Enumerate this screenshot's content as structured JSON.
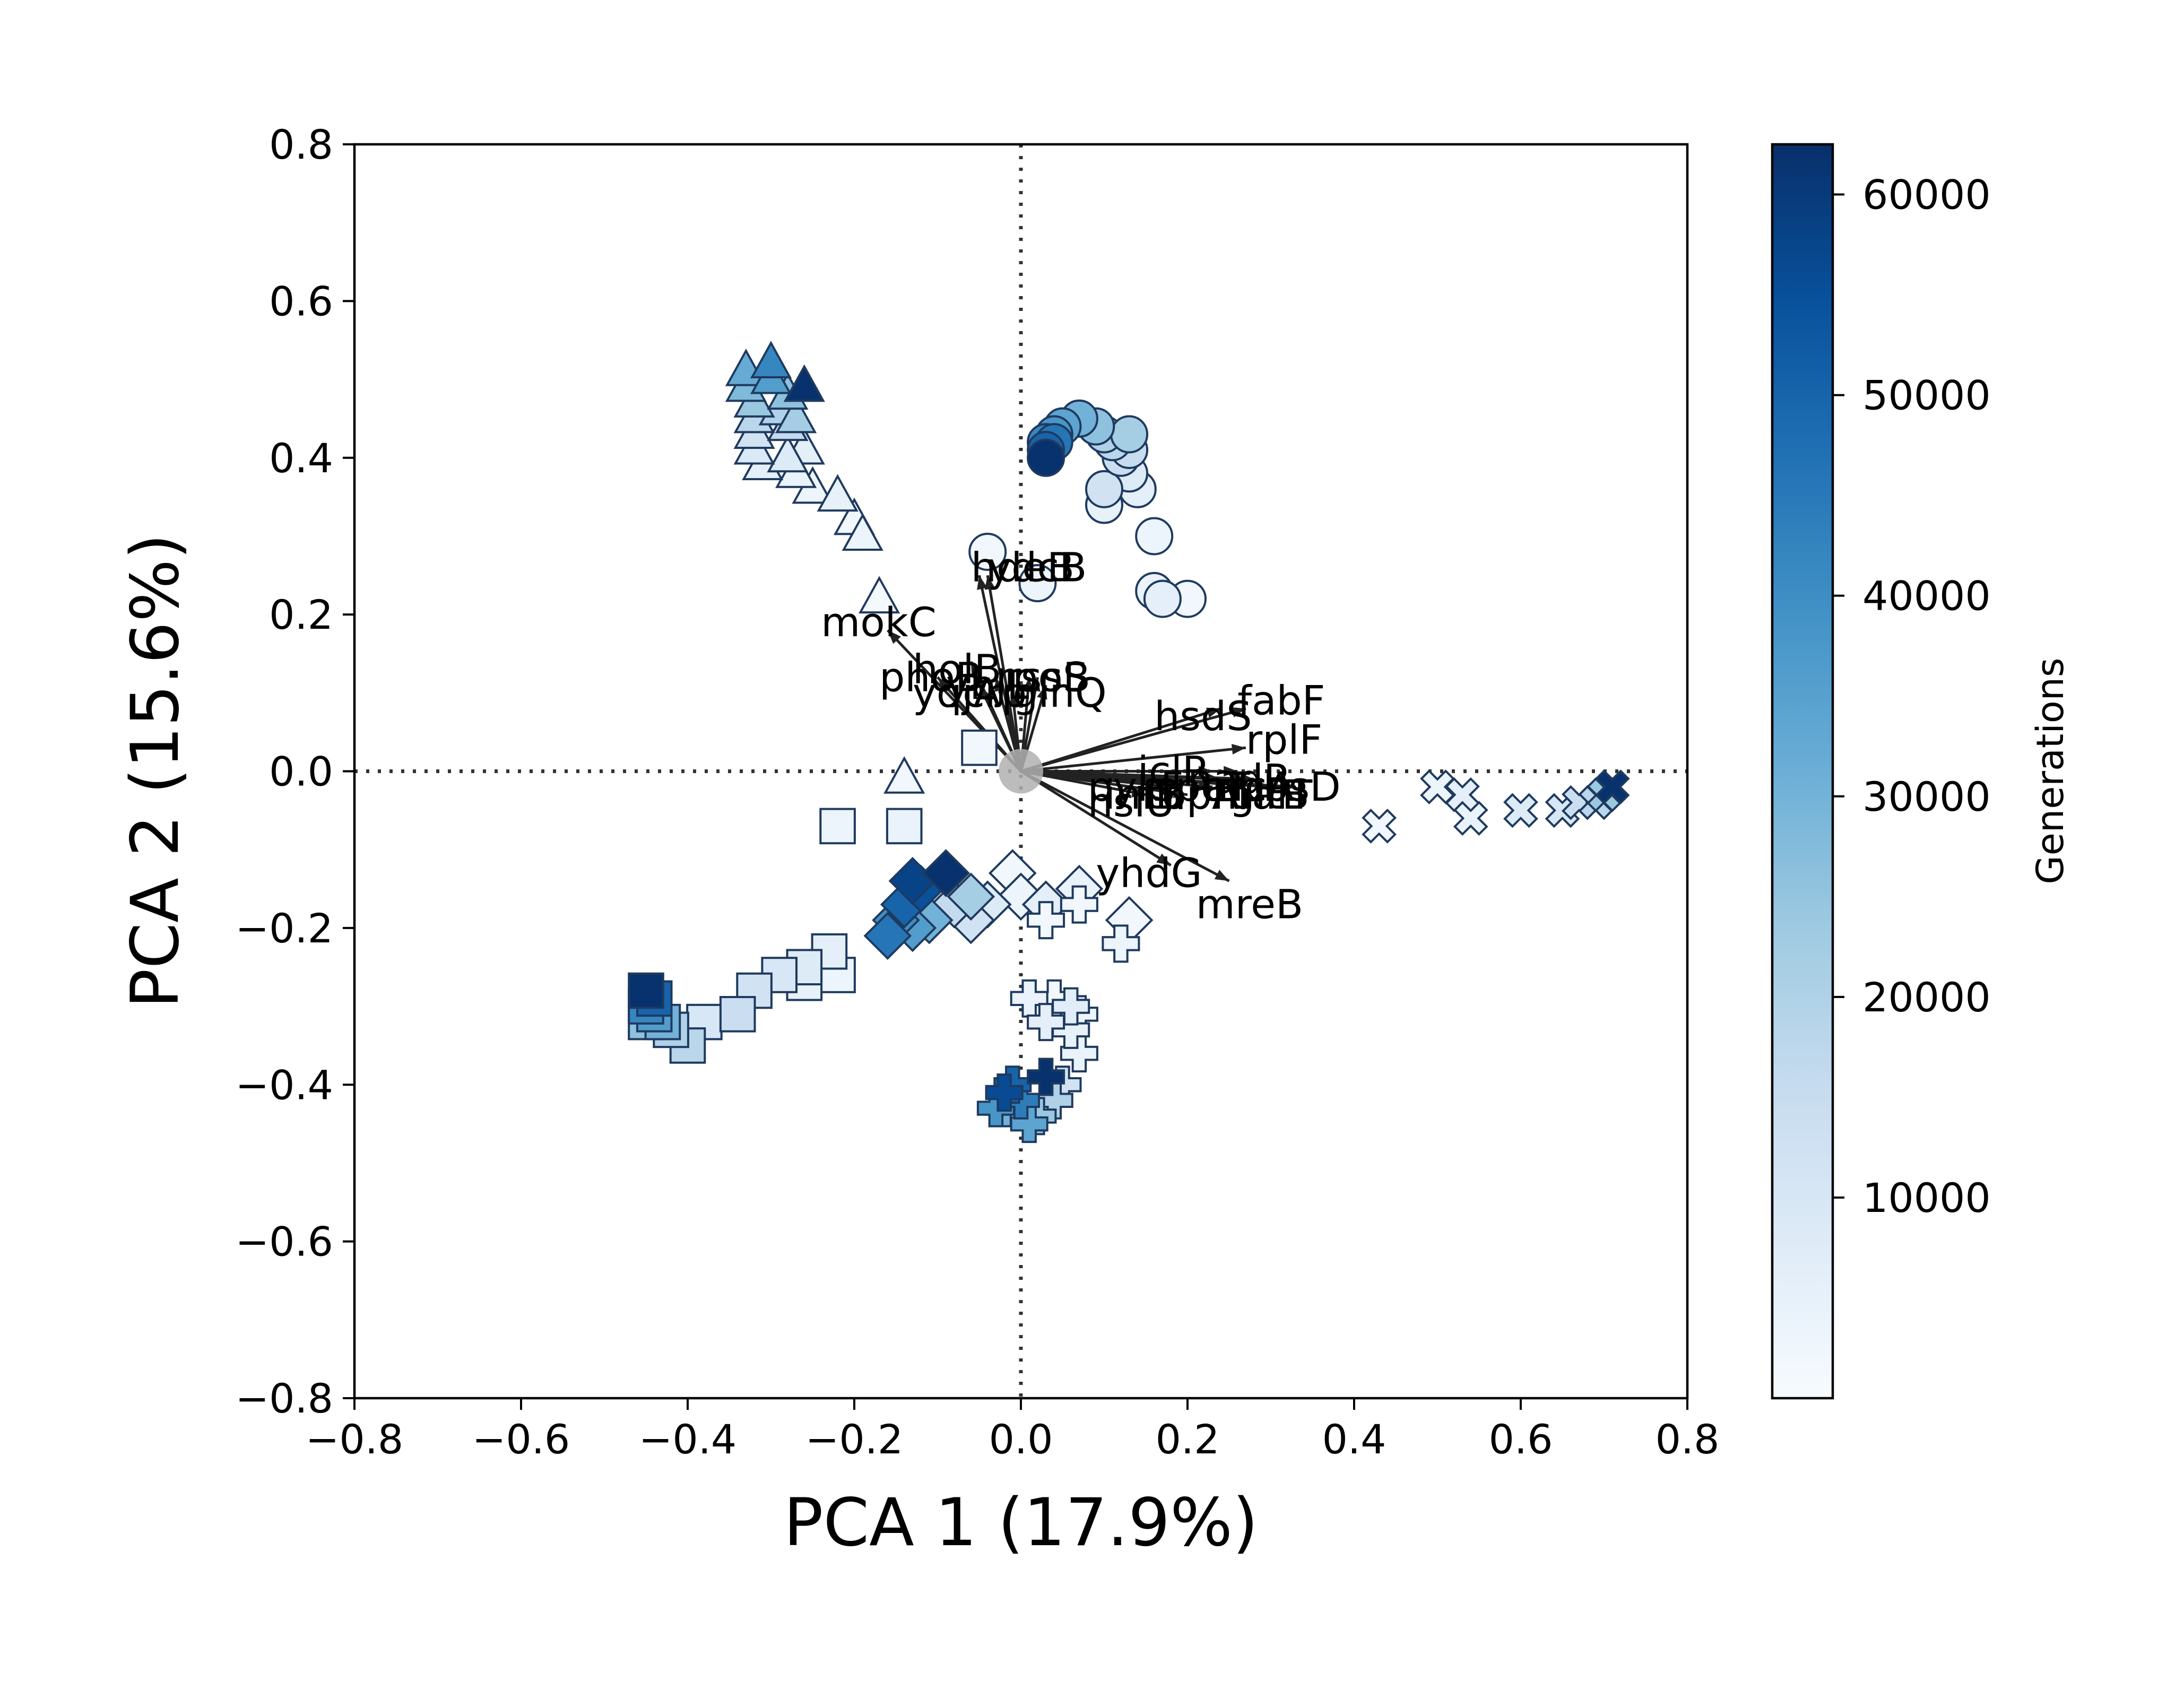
{
  "chart_data": {
    "type": "scatter",
    "title": "",
    "xlabel": "PCA 1 (17.9%)",
    "ylabel": "PCA 2 (15.6%)",
    "xlim": [
      -0.8,
      0.8
    ],
    "ylim": [
      -0.8,
      0.8
    ],
    "xticks": [
      -0.8,
      -0.6,
      -0.4,
      -0.2,
      0.0,
      0.2,
      0.4,
      0.6,
      0.8
    ],
    "yticks": [
      -0.8,
      -0.6,
      -0.4,
      -0.2,
      0.0,
      0.2,
      0.4,
      0.6,
      0.8
    ],
    "xtick_labels": [
      "−0.8",
      "−0.6",
      "−0.4",
      "−0.2",
      "0.0",
      "0.2",
      "0.4",
      "0.6",
      "0.8"
    ],
    "ytick_labels": [
      "−0.8",
      "−0.6",
      "−0.4",
      "−0.2",
      "0.0",
      "0.2",
      "0.4",
      "0.6",
      "0.8"
    ],
    "reference_lines": {
      "x": 0,
      "y": 0,
      "style": "dotted"
    },
    "colorbar": {
      "label": "Generations",
      "min": 0,
      "max": 62500,
      "ticks": [
        10000,
        20000,
        30000,
        40000,
        50000,
        60000
      ],
      "tick_labels": [
        "10000",
        "20000",
        "30000",
        "40000",
        "50000",
        "60000"
      ],
      "colors": [
        "#f7fbff",
        "#deebf7",
        "#c6dbef",
        "#9ecae1",
        "#6baed6",
        "#4292c6",
        "#2171b5",
        "#08519c",
        "#08306b"
      ]
    },
    "marker_edge_color": "#1f3a5f",
    "origin_marker_color": "#b0b0b0",
    "series": [
      {
        "marker": "circle",
        "points": [
          [
            0.2,
            0.22,
            2000
          ],
          [
            0.16,
            0.23,
            4000
          ],
          [
            0.17,
            0.22,
            6000
          ],
          [
            0.16,
            0.3,
            3000
          ],
          [
            0.14,
            0.36,
            6000
          ],
          [
            0.1,
            0.34,
            5000
          ],
          [
            0.1,
            0.36,
            12000
          ],
          [
            0.13,
            0.38,
            8000
          ],
          [
            0.12,
            0.4,
            14000
          ],
          [
            0.13,
            0.41,
            15000
          ],
          [
            0.11,
            0.42,
            18000
          ],
          [
            0.13,
            0.43,
            22000
          ],
          [
            0.1,
            0.43,
            20000
          ],
          [
            0.09,
            0.44,
            26000
          ],
          [
            0.07,
            0.45,
            30000
          ],
          [
            0.05,
            0.44,
            34000
          ],
          [
            0.04,
            0.43,
            38000
          ],
          [
            0.03,
            0.42,
            42000
          ],
          [
            0.04,
            0.42,
            46000
          ],
          [
            0.03,
            0.41,
            50000
          ],
          [
            0.03,
            0.4,
            62000
          ],
          [
            0.02,
            0.24,
            3000
          ],
          [
            -0.04,
            0.28,
            2000
          ]
        ]
      },
      {
        "marker": "triangle",
        "points": [
          [
            -0.14,
            -0.01,
            2000
          ],
          [
            -0.17,
            0.22,
            1000
          ],
          [
            -0.19,
            0.3,
            3000
          ],
          [
            -0.2,
            0.32,
            2000
          ],
          [
            -0.22,
            0.35,
            5000
          ],
          [
            -0.25,
            0.36,
            3000
          ],
          [
            -0.27,
            0.38,
            4000
          ],
          [
            -0.28,
            0.4,
            8000
          ],
          [
            -0.26,
            0.41,
            6000
          ],
          [
            -0.31,
            0.39,
            6000
          ],
          [
            -0.32,
            0.41,
            9000
          ],
          [
            -0.32,
            0.43,
            12000
          ],
          [
            -0.28,
            0.44,
            16000
          ],
          [
            -0.32,
            0.45,
            18000
          ],
          [
            -0.27,
            0.45,
            22000
          ],
          [
            -0.29,
            0.46,
            20000
          ],
          [
            -0.32,
            0.47,
            24000
          ],
          [
            -0.28,
            0.48,
            26000
          ],
          [
            -0.33,
            0.49,
            28000
          ],
          [
            -0.3,
            0.5,
            36000
          ],
          [
            -0.33,
            0.51,
            32000
          ],
          [
            -0.26,
            0.49,
            62000
          ],
          [
            -0.3,
            0.52,
            42000
          ]
        ]
      },
      {
        "marker": "square",
        "points": [
          [
            -0.05,
            0.03,
            2000
          ],
          [
            -0.22,
            -0.07,
            3000
          ],
          [
            -0.14,
            -0.07,
            4000
          ],
          [
            -0.22,
            -0.26,
            3000
          ],
          [
            -0.26,
            -0.27,
            5000
          ],
          [
            -0.23,
            -0.23,
            6000
          ],
          [
            -0.26,
            -0.25,
            8000
          ],
          [
            -0.29,
            -0.26,
            10000
          ],
          [
            -0.32,
            -0.28,
            12000
          ],
          [
            -0.34,
            -0.31,
            14000
          ],
          [
            -0.38,
            -0.32,
            10000
          ],
          [
            -0.4,
            -0.35,
            18000
          ],
          [
            -0.42,
            -0.33,
            20000
          ],
          [
            -0.45,
            -0.32,
            26000
          ],
          [
            -0.43,
            -0.32,
            30000
          ],
          [
            -0.44,
            -0.31,
            36000
          ],
          [
            -0.45,
            -0.3,
            42000
          ],
          [
            -0.44,
            -0.29,
            50000
          ],
          [
            -0.45,
            -0.28,
            62000
          ]
        ]
      },
      {
        "marker": "diamond",
        "points": [
          [
            0.13,
            -0.19,
            2000
          ],
          [
            0.07,
            -0.15,
            4000
          ],
          [
            0.03,
            -0.17,
            6000
          ],
          [
            0.0,
            -0.16,
            3000
          ],
          [
            -0.01,
            -0.13,
            2000
          ],
          [
            -0.04,
            -0.17,
            8000
          ],
          [
            -0.06,
            -0.19,
            12000
          ],
          [
            -0.08,
            -0.17,
            16000
          ],
          [
            -0.06,
            -0.16,
            22000
          ],
          [
            -0.11,
            -0.19,
            30000
          ],
          [
            -0.13,
            -0.2,
            36000
          ],
          [
            -0.15,
            -0.19,
            40000
          ],
          [
            -0.16,
            -0.21,
            46000
          ],
          [
            -0.14,
            -0.17,
            50000
          ],
          [
            -0.12,
            -0.15,
            55000
          ],
          [
            -0.13,
            -0.14,
            58000
          ],
          [
            -0.09,
            -0.13,
            62000
          ]
        ]
      },
      {
        "marker": "plus",
        "points": [
          [
            0.03,
            -0.19,
            2000
          ],
          [
            0.07,
            -0.17,
            2000
          ],
          [
            0.12,
            -0.22,
            3000
          ],
          [
            0.07,
            -0.36,
            4000
          ],
          [
            0.06,
            -0.33,
            5000
          ],
          [
            0.07,
            -0.31,
            3000
          ],
          [
            0.03,
            -0.32,
            6000
          ],
          [
            0.04,
            -0.29,
            2000
          ],
          [
            0.01,
            -0.29,
            4000
          ],
          [
            0.06,
            -0.3,
            7000
          ],
          [
            0.05,
            -0.4,
            12000
          ],
          [
            0.04,
            -0.42,
            20000
          ],
          [
            0.02,
            -0.44,
            24000
          ],
          [
            -0.02,
            -0.43,
            30000
          ],
          [
            0.01,
            -0.45,
            34000
          ],
          [
            -0.03,
            -0.43,
            38000
          ],
          [
            0.0,
            -0.42,
            44000
          ],
          [
            -0.01,
            -0.4,
            50000
          ],
          [
            -0.02,
            -0.41,
            56000
          ],
          [
            0.03,
            -0.39,
            62000
          ]
        ]
      },
      {
        "marker": "x",
        "points": [
          [
            0.43,
            -0.07,
            2000
          ],
          [
            0.5,
            -0.02,
            3000
          ],
          [
            0.54,
            -0.06,
            4000
          ],
          [
            0.53,
            -0.03,
            6000
          ],
          [
            0.6,
            -0.05,
            8000
          ],
          [
            0.65,
            -0.05,
            10000
          ],
          [
            0.67,
            -0.04,
            14000
          ],
          [
            0.69,
            -0.04,
            18000
          ],
          [
            0.7,
            -0.03,
            24000
          ],
          [
            0.71,
            -0.02,
            62000
          ]
        ]
      }
    ],
    "arrows": [
      {
        "label": "ydcB",
        "x": -0.04,
        "y": 0.25,
        "label_x": -0.04,
        "label_y": 0.26
      },
      {
        "label": "hdeB",
        "x": -0.05,
        "y": 0.25,
        "label_x": -0.06,
        "label_y": 0.26
      },
      {
        "label": "mokC",
        "x": -0.16,
        "y": 0.18,
        "label_x": -0.24,
        "label_y": 0.19
      },
      {
        "label": "phoB",
        "x": -0.1,
        "y": 0.12,
        "label_x": -0.17,
        "label_y": 0.12
      },
      {
        "label": "holB",
        "x": -0.06,
        "y": 0.14,
        "label_x": -0.13,
        "label_y": 0.13
      },
      {
        "label": "yqjA",
        "x": -0.05,
        "y": 0.11,
        "label_x": -0.13,
        "label_y": 0.1
      },
      {
        "label": "ybjL",
        "x": -0.03,
        "y": 0.12,
        "label_x": -0.09,
        "label_y": 0.11
      },
      {
        "label": "rpoS",
        "x": 0.01,
        "y": 0.12,
        "label_x": -0.03,
        "label_y": 0.12
      },
      {
        "label": "crp",
        "x": -0.01,
        "y": 0.1,
        "label_x": -0.07,
        "label_y": 0.1
      },
      {
        "label": "rssB",
        "x": 0.02,
        "y": 0.12,
        "label_x": -0.02,
        "label_y": 0.12
      },
      {
        "label": "glnQ",
        "x": 0.03,
        "y": 0.11,
        "label_x": -0.01,
        "label_y": 0.1
      },
      {
        "label": "fabF",
        "x": 0.27,
        "y": 0.08,
        "label_x": 0.26,
        "label_y": 0.09
      },
      {
        "label": "hsdS",
        "x": 0.24,
        "y": 0.08,
        "label_x": 0.16,
        "label_y": 0.07
      },
      {
        "label": "rplF",
        "x": 0.27,
        "y": 0.03,
        "label_x": 0.27,
        "label_y": 0.04
      },
      {
        "label": "iclR",
        "x": 0.23,
        "y": 0.0,
        "label_x": 0.14,
        "label_y": 0.0
      },
      {
        "label": "nadR",
        "x": 0.26,
        "y": 0.0,
        "label_x": 0.2,
        "label_y": -0.01
      },
      {
        "label": "spoT",
        "x": 0.24,
        "y": -0.01,
        "label_x": 0.16,
        "label_y": -0.02
      },
      {
        "label": "arcA",
        "x": 0.27,
        "y": -0.01,
        "label_x": 0.22,
        "label_y": -0.02
      },
      {
        "label": "malT",
        "x": 0.28,
        "y": -0.01,
        "label_x": 0.23,
        "label_y": -0.03
      },
      {
        "label": "pykF",
        "x": 0.18,
        "y": -0.02,
        "label_x": 0.08,
        "label_y": -0.02
      },
      {
        "label": "topA",
        "x": 0.23,
        "y": -0.02,
        "label_x": 0.15,
        "label_y": -0.03
      },
      {
        "label": "gltB",
        "x": 0.3,
        "y": -0.02,
        "label_x": 0.25,
        "label_y": -0.03
      },
      {
        "label": "pbsD",
        "x": 0.33,
        "y": -0.02,
        "label_x": 0.26,
        "label_y": -0.02
      },
      {
        "label": "infB",
        "x": 0.2,
        "y": -0.03,
        "label_x": 0.1,
        "label_y": -0.03
      },
      {
        "label": "hslU",
        "x": 0.15,
        "y": -0.03,
        "label_x": 0.08,
        "label_y": -0.04
      },
      {
        "label": "yhdG",
        "x": 0.18,
        "y": -0.12,
        "label_x": 0.09,
        "label_y": -0.13
      },
      {
        "label": "mreB",
        "x": 0.25,
        "y": -0.14,
        "label_x": 0.21,
        "label_y": -0.17
      }
    ]
  }
}
